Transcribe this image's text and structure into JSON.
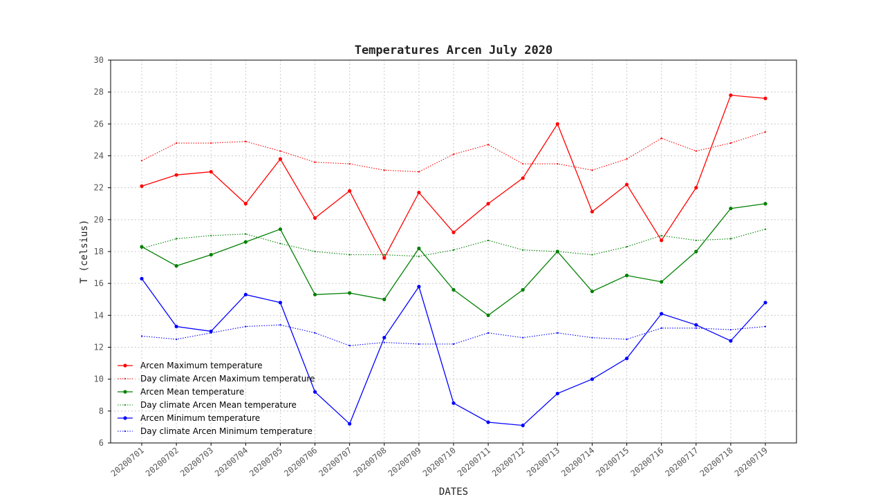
{
  "chart_data": {
    "type": "line",
    "title": "Temperatures Arcen July 2020",
    "xlabel": "DATES",
    "ylabel": "T (celsius)",
    "ylim": [
      6,
      30
    ],
    "yticks": [
      6,
      8,
      10,
      12,
      14,
      16,
      18,
      20,
      22,
      24,
      26,
      28,
      30
    ],
    "grid": true,
    "legend_position": "bottom-left",
    "categories": [
      "20200701",
      "20200702",
      "20200703",
      "20200704",
      "20200705",
      "20200706",
      "20200707",
      "20200708",
      "20200709",
      "20200710",
      "20200711",
      "20200712",
      "20200713",
      "20200714",
      "20200715",
      "20200716",
      "20200717",
      "20200718",
      "20200719"
    ],
    "series": [
      {
        "name": "Arcen Maximum temperature",
        "color": "#ff0000",
        "style": "solid",
        "values": [
          22.1,
          22.8,
          23.0,
          21.0,
          23.8,
          20.1,
          21.8,
          17.6,
          21.7,
          19.2,
          21.0,
          22.6,
          26.0,
          20.5,
          22.2,
          18.7,
          22.0,
          27.8,
          27.6
        ]
      },
      {
        "name": "Day climate Arcen Maximum temperature",
        "color": "#ff0000",
        "style": "dotted",
        "values": [
          23.7,
          24.8,
          24.8,
          24.9,
          24.3,
          23.6,
          23.5,
          23.1,
          23.0,
          24.1,
          24.7,
          23.5,
          23.5,
          23.1,
          23.8,
          25.1,
          24.3,
          24.8,
          25.5
        ]
      },
      {
        "name": "Arcen Mean temperature",
        "color": "#008000",
        "style": "solid",
        "values": [
          18.3,
          17.1,
          17.8,
          18.6,
          19.4,
          15.3,
          15.4,
          15.0,
          18.2,
          15.6,
          14.0,
          15.6,
          18.0,
          15.5,
          16.5,
          16.1,
          18.0,
          20.7,
          21.0
        ]
      },
      {
        "name": "Day climate Arcen Mean temperature",
        "color": "#008000",
        "style": "dotted",
        "values": [
          18.2,
          18.8,
          19.0,
          19.1,
          18.5,
          18.0,
          17.8,
          17.8,
          17.7,
          18.1,
          18.7,
          18.1,
          18.0,
          17.8,
          18.3,
          19.0,
          18.7,
          18.8,
          19.4
        ]
      },
      {
        "name": "Arcen Minimum temperature",
        "color": "#0000ff",
        "style": "solid",
        "values": [
          16.3,
          13.3,
          13.0,
          15.3,
          14.8,
          9.2,
          7.2,
          12.6,
          15.8,
          8.5,
          7.3,
          7.1,
          9.1,
          10.0,
          11.3,
          14.1,
          13.4,
          12.4,
          14.8
        ]
      },
      {
        "name": "Day climate Arcen Minimum temperature",
        "color": "#0000ff",
        "style": "dotted",
        "values": [
          12.7,
          12.5,
          12.9,
          13.3,
          13.4,
          12.9,
          12.1,
          12.3,
          12.2,
          12.2,
          12.9,
          12.6,
          12.9,
          12.6,
          12.5,
          13.2,
          13.2,
          13.1,
          13.3
        ]
      }
    ]
  }
}
